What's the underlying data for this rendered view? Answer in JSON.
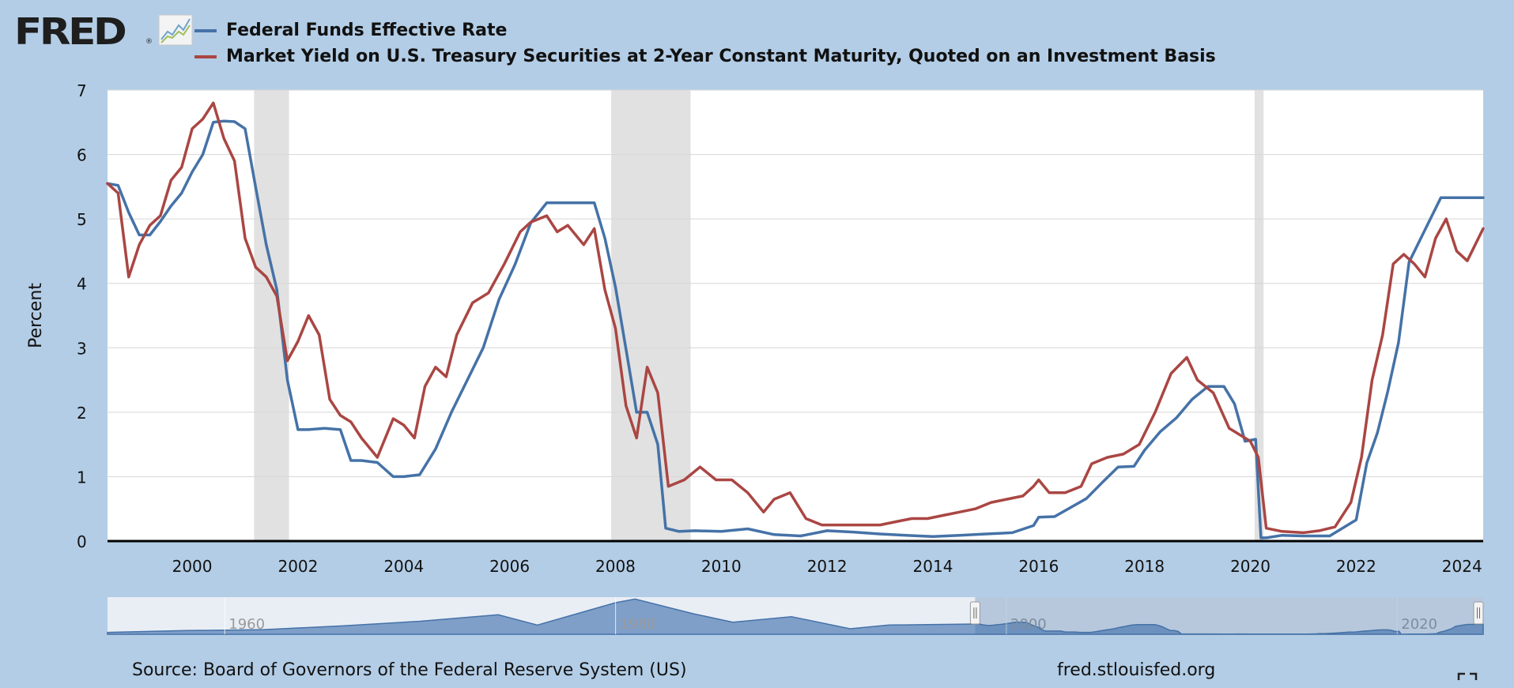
{
  "logo": {
    "text": "FRED",
    "reg": "®"
  },
  "legend": [
    {
      "label": "Federal Funds Effective Rate",
      "color": "#4572a7"
    },
    {
      "label": "Market Yield on U.S. Treasury Securities at 2-Year Constant Maturity, Quoted on an Investment Basis",
      "color": "#aa4643"
    }
  ],
  "footer": {
    "source": "Source: Board of Governors of the Federal Reserve System (US)",
    "site": "fred.stlouisfed.org"
  },
  "icons": {
    "logo_graph": "line-graph-icon",
    "fullscreen": "fullscreen-icon"
  },
  "chart_data": {
    "type": "line",
    "title": "",
    "xlabel": "",
    "ylabel": "Percent",
    "xlim": [
      1998.4,
      2024.4
    ],
    "ylim": [
      0,
      7
    ],
    "yticks": [
      0,
      1,
      2,
      3,
      4,
      5,
      6,
      7
    ],
    "xticks": [
      2000,
      2002,
      2004,
      2006,
      2008,
      2010,
      2012,
      2014,
      2016,
      2018,
      2020,
      2022,
      2024
    ],
    "grid": true,
    "legend_position": "top",
    "recessions": [
      [
        2001.17,
        2001.83
      ],
      [
        2007.92,
        2009.42
      ],
      [
        2020.08,
        2020.25
      ]
    ],
    "series": [
      {
        "name": "Federal Funds Effective Rate",
        "color": "#4572a7",
        "x": [
          1998.4,
          1998.6,
          1998.8,
          1999.0,
          1999.2,
          1999.4,
          1999.6,
          1999.8,
          2000.0,
          2000.2,
          2000.4,
          2000.6,
          2000.8,
          2001.0,
          2001.2,
          2001.4,
          2001.6,
          2001.8,
          2002.0,
          2002.2,
          2002.5,
          2002.8,
          2003.0,
          2003.2,
          2003.5,
          2003.8,
          2004.0,
          2004.3,
          2004.6,
          2004.9,
          2005.2,
          2005.5,
          2005.8,
          2006.1,
          2006.4,
          2006.7,
          2007.0,
          2007.3,
          2007.6,
          2007.8,
          2008.0,
          2008.2,
          2008.4,
          2008.6,
          2008.8,
          2008.95,
          2009.2,
          2009.5,
          2010.0,
          2010.5,
          2011.0,
          2011.5,
          2012.0,
          2012.5,
          2013.0,
          2013.5,
          2014.0,
          2014.5,
          2015.0,
          2015.5,
          2015.9,
          2016.0,
          2016.3,
          2016.9,
          2017.2,
          2017.5,
          2017.8,
          2018.0,
          2018.3,
          2018.6,
          2018.9,
          2019.2,
          2019.5,
          2019.7,
          2019.9,
          2020.1,
          2020.2,
          2020.3,
          2020.6,
          2021.0,
          2021.5,
          2022.0,
          2022.2,
          2022.4,
          2022.6,
          2022.8,
          2023.0,
          2023.3,
          2023.6,
          2024.0,
          2024.4
        ],
        "values": [
          5.55,
          5.52,
          5.1,
          4.75,
          4.75,
          4.96,
          5.2,
          5.4,
          5.73,
          6.0,
          6.5,
          6.52,
          6.51,
          6.4,
          5.49,
          4.6,
          3.9,
          2.5,
          1.73,
          1.73,
          1.75,
          1.73,
          1.25,
          1.25,
          1.22,
          1.0,
          1.0,
          1.03,
          1.43,
          2.0,
          2.5,
          3.0,
          3.75,
          4.29,
          4.94,
          5.25,
          5.25,
          5.25,
          5.25,
          4.7,
          3.94,
          2.98,
          2.0,
          2.0,
          1.5,
          0.2,
          0.15,
          0.16,
          0.15,
          0.19,
          0.1,
          0.08,
          0.16,
          0.14,
          0.11,
          0.09,
          0.07,
          0.09,
          0.11,
          0.13,
          0.24,
          0.37,
          0.38,
          0.66,
          0.91,
          1.15,
          1.16,
          1.41,
          1.7,
          1.91,
          2.2,
          2.4,
          2.4,
          2.13,
          1.55,
          1.58,
          0.05,
          0.05,
          0.09,
          0.08,
          0.08,
          0.33,
          1.21,
          1.68,
          2.33,
          3.08,
          4.33,
          4.83,
          5.33,
          5.33,
          5.33
        ]
      },
      {
        "name": "Market Yield on U.S. Treasury Securities at 2-Year Constant Maturity, Quoted on an Investment Basis",
        "color": "#aa4643",
        "x": [
          1998.4,
          1998.6,
          1998.8,
          1999.0,
          1999.2,
          1999.4,
          1999.6,
          1999.8,
          2000.0,
          2000.2,
          2000.4,
          2000.6,
          2000.8,
          2001.0,
          2001.2,
          2001.4,
          2001.6,
          2001.8,
          2002.0,
          2002.2,
          2002.4,
          2002.6,
          2002.8,
          2003.0,
          2003.2,
          2003.5,
          2003.8,
          2004.0,
          2004.2,
          2004.4,
          2004.6,
          2004.8,
          2005.0,
          2005.3,
          2005.6,
          2005.9,
          2006.2,
          2006.4,
          2006.7,
          2006.9,
          2007.1,
          2007.4,
          2007.6,
          2007.8,
          2008.0,
          2008.2,
          2008.4,
          2008.6,
          2008.8,
          2009.0,
          2009.3,
          2009.6,
          2009.9,
          2010.2,
          2010.5,
          2010.8,
          2011.0,
          2011.3,
          2011.6,
          2011.9,
          2012.2,
          2012.6,
          2013.0,
          2013.3,
          2013.6,
          2013.9,
          2014.2,
          2014.5,
          2014.8,
          2015.1,
          2015.4,
          2015.7,
          2015.9,
          2016.0,
          2016.2,
          2016.5,
          2016.8,
          2017.0,
          2017.3,
          2017.6,
          2017.9,
          2018.2,
          2018.5,
          2018.8,
          2019.0,
          2019.3,
          2019.6,
          2019.9,
          2020.0,
          2020.15,
          2020.3,
          2020.6,
          2021.0,
          2021.3,
          2021.6,
          2021.9,
          2022.1,
          2022.3,
          2022.5,
          2022.7,
          2022.9,
          2023.1,
          2023.3,
          2023.5,
          2023.7,
          2023.9,
          2024.1,
          2024.4
        ],
        "values": [
          5.55,
          5.4,
          4.1,
          4.6,
          4.9,
          5.05,
          5.6,
          5.8,
          6.4,
          6.55,
          6.8,
          6.25,
          5.9,
          4.7,
          4.25,
          4.1,
          3.8,
          2.8,
          3.1,
          3.5,
          3.2,
          2.2,
          1.95,
          1.85,
          1.6,
          1.3,
          1.9,
          1.8,
          1.6,
          2.4,
          2.7,
          2.55,
          3.2,
          3.7,
          3.85,
          4.3,
          4.8,
          4.95,
          5.05,
          4.8,
          4.9,
          4.6,
          4.85,
          3.9,
          3.3,
          2.1,
          1.6,
          2.7,
          2.3,
          0.85,
          0.95,
          1.15,
          0.95,
          0.95,
          0.75,
          0.45,
          0.65,
          0.75,
          0.35,
          0.25,
          0.25,
          0.25,
          0.25,
          0.3,
          0.35,
          0.35,
          0.4,
          0.45,
          0.5,
          0.6,
          0.65,
          0.7,
          0.85,
          0.95,
          0.75,
          0.75,
          0.85,
          1.2,
          1.3,
          1.35,
          1.5,
          2.0,
          2.6,
          2.85,
          2.5,
          2.3,
          1.75,
          1.6,
          1.55,
          1.3,
          0.2,
          0.15,
          0.13,
          0.16,
          0.22,
          0.6,
          1.3,
          2.5,
          3.2,
          4.3,
          4.45,
          4.3,
          4.1,
          4.7,
          5.0,
          4.5,
          4.35,
          4.85
        ]
      }
    ]
  }
}
